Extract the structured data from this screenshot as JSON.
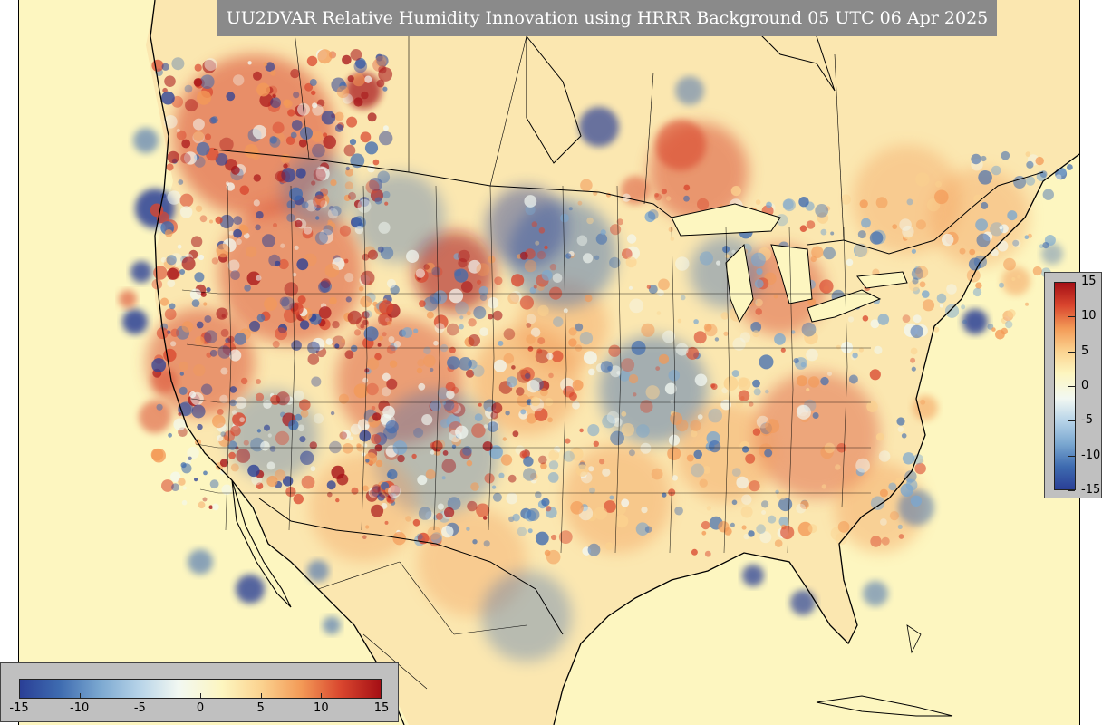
{
  "title": "UU2DVAR Relative Humidity Innovation using HRRR Background 05 UTC 06 Apr 2025",
  "colors": {
    "ocean": "#fdf6c0",
    "title_bg": "#8a8a8a",
    "legend_bg": "#c0c0c0",
    "scale": [
      "#2a3f96",
      "#3e6bb0",
      "#7aa7d0",
      "#b6d3e8",
      "#f2f8f2",
      "#fdf6c0",
      "#fbd28f",
      "#f39a57",
      "#d9462e",
      "#a50f15"
    ]
  },
  "colorbar_vertical": {
    "ticks": [
      "15",
      "10",
      "5",
      "0",
      "-5",
      "-10",
      "-15"
    ]
  },
  "colorbar_horizontal": {
    "ticks": [
      "-15",
      "-10",
      "-5",
      "0",
      "5",
      "10",
      "15"
    ]
  }
}
